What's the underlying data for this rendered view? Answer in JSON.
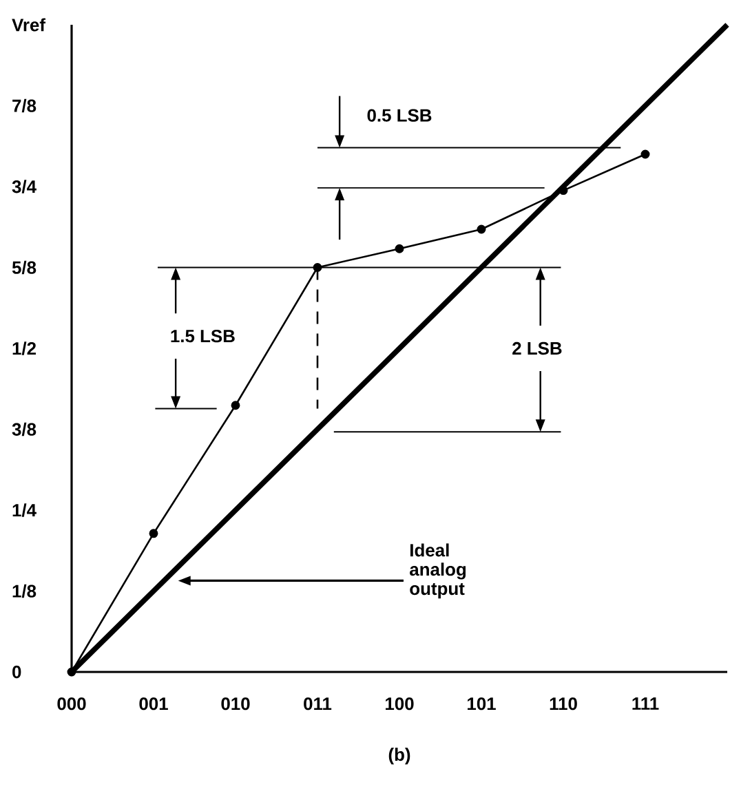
{
  "chart_data": {
    "type": "line",
    "annotations": [
      "Ideal analog output",
      "(b)",
      "1.5 LSB",
      "2 LSB"
    ],
    "categories": [
      "000",
      "001",
      "010",
      "011",
      "100",
      "101",
      "110",
      "111",
      null
    ],
    "ylim": [
      0,
      1
    ],
    "yticks": [
      {
        "value": 0,
        "label": "0"
      },
      {
        "value": 0.125,
        "label": "1/8"
      },
      {
        "value": 0.25,
        "label": "1/4"
      },
      {
        "value": 0.375,
        "label": "3/8"
      },
      {
        "value": 0.5,
        "label": "1/2"
      },
      {
        "value": 0.625,
        "label": "5/8"
      },
      {
        "value": 0.75,
        "label": "3/4"
      },
      {
        "value": 0.875,
        "label": "7/8"
      },
      {
        "value": 1,
        "label": "Vref"
      }
    ],
    "ref_lines": [
      {
        "axis": "y",
        "value": 0.81,
        "label": "0.5 LSB"
      },
      {
        "axis": "y",
        "value": 0.748
      },
      {
        "axis": "y",
        "value": 0.625
      },
      {
        "axis": "y",
        "value": 0.407
      },
      {
        "axis": "y",
        "value": 0.371
      }
    ],
    "series": [
      {
        "color": "#000000",
        "marker": "circle",
        "values": [
          0,
          0.214,
          0.412,
          0.625,
          0.654,
          0.684,
          0.744,
          0.8,
          null
        ]
      },
      {
        "color": "#000000",
        "marker": "none",
        "values": [
          0,
          0.125,
          0.25,
          0.375,
          0.5,
          0.625,
          0.75,
          0.875,
          1
        ]
      }
    ]
  }
}
